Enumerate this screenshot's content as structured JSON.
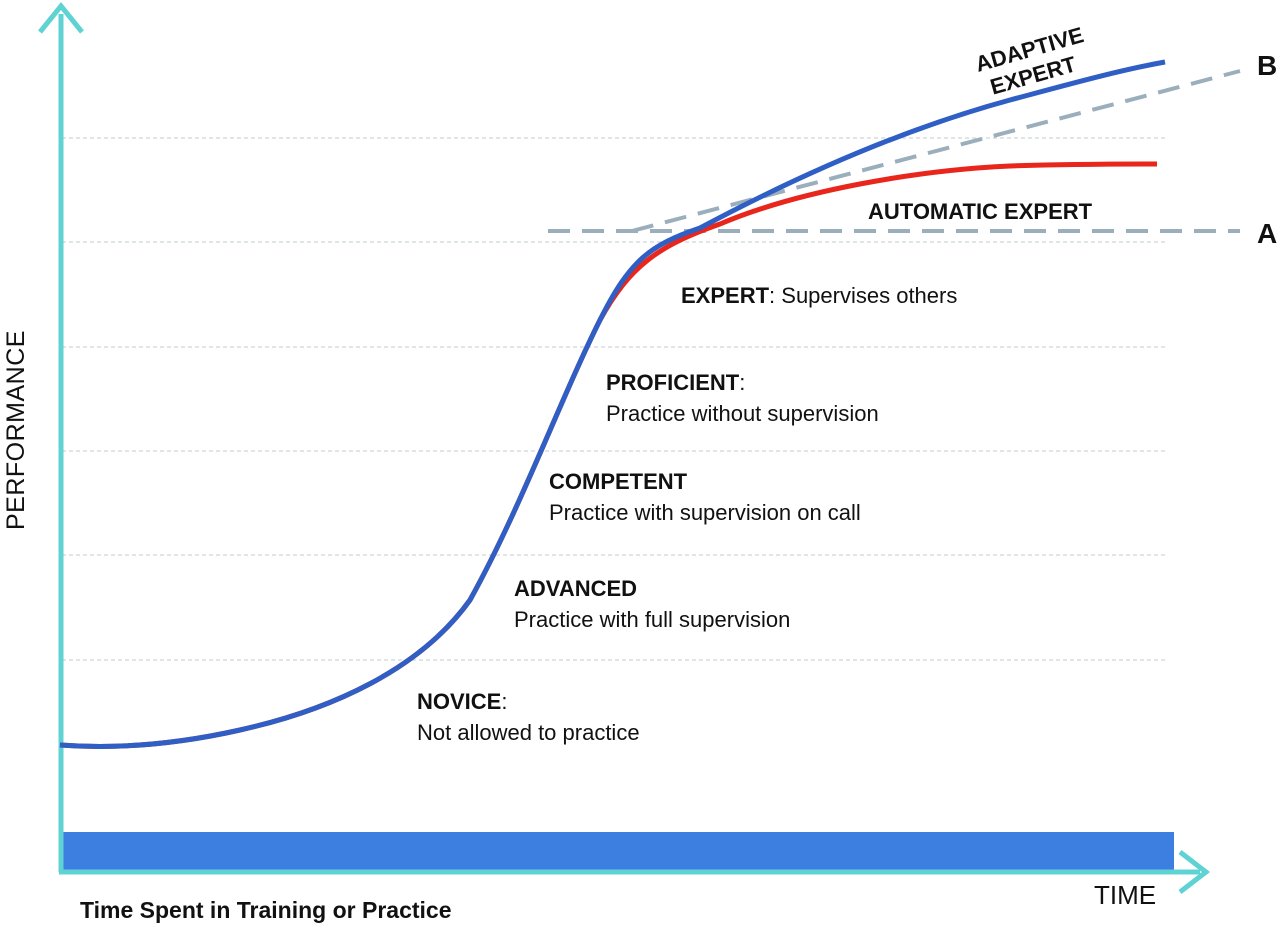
{
  "axes": {
    "y_label": "PERFORMANCE",
    "x_label": "TIME",
    "caption": "Time Spent in Training or Practice",
    "axis_color": "#5fd3d3",
    "bar_color": "#3d7fe0"
  },
  "levels": {
    "line_a_label": "A",
    "line_b_label": "B",
    "reference_color": "#9aaebb"
  },
  "curves": {
    "adaptive": {
      "label_line1": "ADAPTIVE",
      "label_line2": "EXPERT",
      "color": "#2f5fc4"
    },
    "automatic": {
      "label": "AUTOMATIC EXPERT",
      "color": "#e8261c"
    }
  },
  "stages": [
    {
      "title": "EXPERT",
      "title_suffix": ":",
      "description": " Supervises others"
    },
    {
      "title": "PROFICIENT",
      "title_suffix": ":",
      "description": "Practice without supervision"
    },
    {
      "title": "COMPETENT",
      "title_suffix": "",
      "description": "Practice with supervision on call"
    },
    {
      "title": "ADVANCED",
      "title_suffix": "",
      "description": "Practice with full supervision"
    },
    {
      "title": "NOVICE",
      "title_suffix": ":",
      "description": "Not allowed to practice"
    }
  ]
}
